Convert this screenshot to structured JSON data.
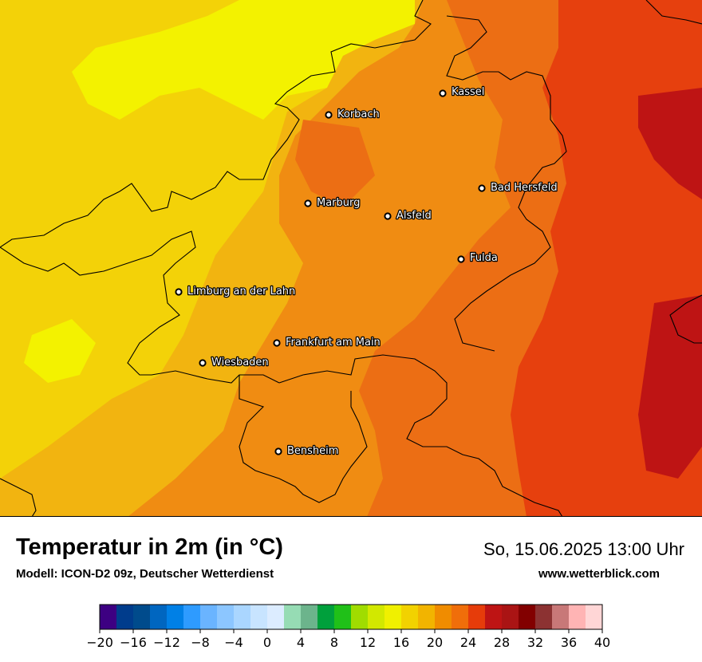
{
  "header": {
    "title": "Temperatur in 2m (in °C)",
    "subtitle": "Modell: ICON-D2 09z, Deutscher Wetterdienst",
    "datetime": "So, 15.06.2025 13:00 Uhr",
    "website": "www.wetterblick.com"
  },
  "cities": [
    {
      "name": "Kassel"
    },
    {
      "name": "Korbach"
    },
    {
      "name": "Bad Hersfeld"
    },
    {
      "name": "Marburg"
    },
    {
      "name": "Alsfeld"
    },
    {
      "name": "Fulda"
    },
    {
      "name": "Limburg an der Lahn"
    },
    {
      "name": "Frankfurt am Main"
    },
    {
      "name": "Wiesbaden"
    },
    {
      "name": "Bensheim"
    }
  ],
  "legend": {
    "min": -20,
    "max": 40,
    "step": 2,
    "tick_labels": [
      "−20",
      "−16",
      "−12",
      "−8",
      "−4",
      "0",
      "4",
      "8",
      "12",
      "16",
      "20",
      "24",
      "28",
      "32",
      "36",
      "40"
    ],
    "colors": [
      "#3d0082",
      "#003c8c",
      "#004b8c",
      "#0066c0",
      "#0080e6",
      "#2e9bff",
      "#6ab4ff",
      "#8cc6ff",
      "#aad6ff",
      "#c8e4ff",
      "#dcecff",
      "#96dcb4",
      "#6cb48c",
      "#00a03c",
      "#20c018",
      "#a0dc00",
      "#d2e800",
      "#f0f000",
      "#f2d200",
      "#f2b400",
      "#f08c00",
      "#f06e0a",
      "#e63c0a",
      "#be1414",
      "#aa1414",
      "#820000",
      "#8c3232",
      "#c87878",
      "#ffb4b4",
      "#ffd6d6"
    ]
  },
  "palette": {
    "yellow": "#f3d208",
    "bright_yellow": "#f3f200",
    "amber": "#f2b410",
    "orange": "#f08c12",
    "dark_orange": "#ec6e14",
    "red_orange": "#e6400e",
    "red": "#be1414"
  }
}
